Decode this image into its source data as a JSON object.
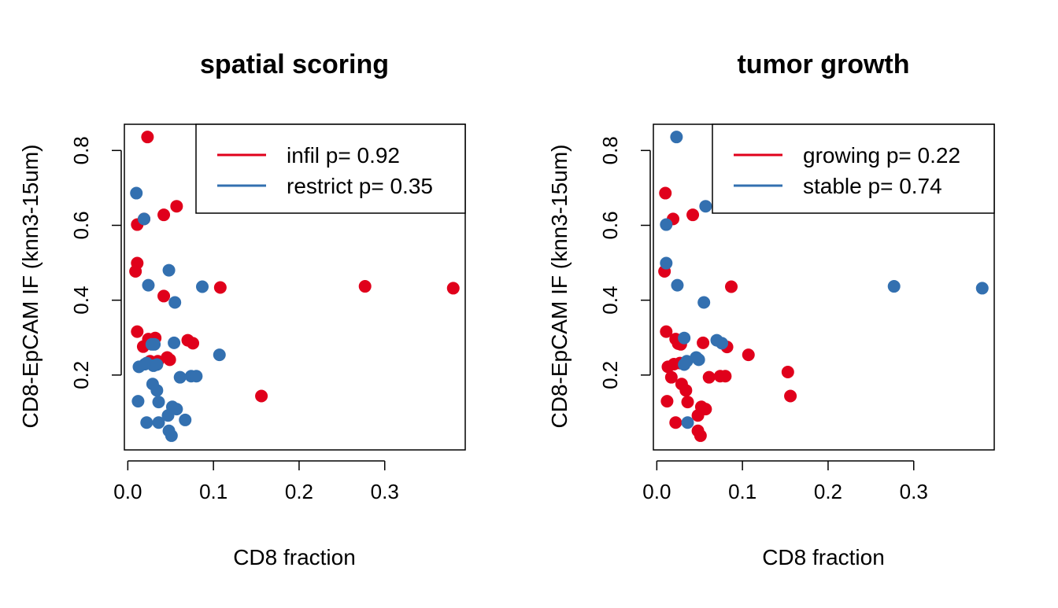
{
  "colors": {
    "red": "#E0001B",
    "blue": "#3370B0"
  },
  "chart_data": [
    {
      "type": "scatter",
      "title": "spatial scoring",
      "xlabel": "CD8 fraction",
      "ylabel": "CD8-EpCAM IF (knn3-15um)",
      "xlim": [
        -0.004,
        0.394
      ],
      "ylim": [
        0.0,
        0.87
      ],
      "xticks": [
        "0.0",
        "0.1",
        "0.2",
        "0.3"
      ],
      "yticks": [
        "0.2",
        "0.4",
        "0.6",
        "0.8"
      ],
      "grid": false,
      "legend_position": "top-right",
      "legend": [
        {
          "label": "infil p= 0.92",
          "color": "red"
        },
        {
          "label": "restrict p= 0.35",
          "color": "blue"
        }
      ],
      "series": [
        {
          "name": "infil",
          "color": "red",
          "points": [
            [
              0.023,
              0.836
            ],
            [
              0.011,
              0.602
            ],
            [
              0.019,
              0.617
            ],
            [
              0.042,
              0.628
            ],
            [
              0.057,
              0.651
            ],
            [
              0.011,
              0.499
            ],
            [
              0.009,
              0.477
            ],
            [
              0.042,
              0.411
            ],
            [
              0.108,
              0.434
            ],
            [
              0.277,
              0.437
            ],
            [
              0.38,
              0.432
            ],
            [
              0.011,
              0.316
            ],
            [
              0.024,
              0.296
            ],
            [
              0.032,
              0.299
            ],
            [
              0.018,
              0.276
            ],
            [
              0.07,
              0.293
            ],
            [
              0.076,
              0.285
            ],
            [
              0.026,
              0.237
            ],
            [
              0.035,
              0.237
            ],
            [
              0.046,
              0.247
            ],
            [
              0.049,
              0.241
            ],
            [
              0.156,
              0.144
            ]
          ]
        },
        {
          "name": "restrict",
          "color": "blue",
          "points": [
            [
              0.01,
              0.686
            ],
            [
              0.019,
              0.617
            ],
            [
              0.048,
              0.48
            ],
            [
              0.024,
              0.44
            ],
            [
              0.055,
              0.394
            ],
            [
              0.087,
              0.436
            ],
            [
              0.028,
              0.282
            ],
            [
              0.031,
              0.282
            ],
            [
              0.054,
              0.286
            ],
            [
              0.107,
              0.254
            ],
            [
              0.013,
              0.222
            ],
            [
              0.02,
              0.229
            ],
            [
              0.022,
              0.232
            ],
            [
              0.03,
              0.225
            ],
            [
              0.034,
              0.228
            ],
            [
              0.061,
              0.194
            ],
            [
              0.074,
              0.197
            ],
            [
              0.08,
              0.197
            ],
            [
              0.029,
              0.176
            ],
            [
              0.034,
              0.159
            ],
            [
              0.036,
              0.128
            ],
            [
              0.012,
              0.13
            ],
            [
              0.052,
              0.115
            ],
            [
              0.057,
              0.109
            ],
            [
              0.047,
              0.092
            ],
            [
              0.067,
              0.08
            ],
            [
              0.022,
              0.073
            ],
            [
              0.036,
              0.073
            ],
            [
              0.048,
              0.051
            ],
            [
              0.051,
              0.038
            ]
          ]
        }
      ]
    },
    {
      "type": "scatter",
      "title": "tumor growth",
      "xlabel": "CD8 fraction",
      "ylabel": "CD8-EpCAM IF (knn3-15um)",
      "xlim": [
        -0.004,
        0.394
      ],
      "ylim": [
        0.0,
        0.87
      ],
      "xticks": [
        "0.0",
        "0.1",
        "0.2",
        "0.3"
      ],
      "yticks": [
        "0.2",
        "0.4",
        "0.6",
        "0.8"
      ],
      "grid": false,
      "legend_position": "top-right",
      "legend": [
        {
          "label": "growing p= 0.22",
          "color": "red"
        },
        {
          "label": "stable p= 0.74",
          "color": "blue"
        }
      ],
      "series": [
        {
          "name": "growing",
          "color": "red",
          "points": [
            [
              0.01,
              0.686
            ],
            [
              0.019,
              0.617
            ],
            [
              0.042,
              0.628
            ],
            [
              0.009,
              0.477
            ],
            [
              0.087,
              0.436
            ],
            [
              0.011,
              0.316
            ],
            [
              0.022,
              0.296
            ],
            [
              0.025,
              0.284
            ],
            [
              0.028,
              0.282
            ],
            [
              0.054,
              0.286
            ],
            [
              0.082,
              0.275
            ],
            [
              0.107,
              0.254
            ],
            [
              0.153,
              0.208
            ],
            [
              0.156,
              0.144
            ],
            [
              0.013,
              0.222
            ],
            [
              0.02,
              0.229
            ],
            [
              0.027,
              0.232
            ],
            [
              0.017,
              0.194
            ],
            [
              0.061,
              0.194
            ],
            [
              0.074,
              0.197
            ],
            [
              0.08,
              0.197
            ],
            [
              0.029,
              0.176
            ],
            [
              0.034,
              0.159
            ],
            [
              0.036,
              0.128
            ],
            [
              0.012,
              0.13
            ],
            [
              0.052,
              0.115
            ],
            [
              0.057,
              0.109
            ],
            [
              0.048,
              0.092
            ],
            [
              0.022,
              0.073
            ],
            [
              0.048,
              0.051
            ],
            [
              0.051,
              0.038
            ]
          ]
        },
        {
          "name": "stable",
          "color": "blue",
          "points": [
            [
              0.023,
              0.836
            ],
            [
              0.057,
              0.651
            ],
            [
              0.011,
              0.602
            ],
            [
              0.011,
              0.499
            ],
            [
              0.024,
              0.44
            ],
            [
              0.055,
              0.394
            ],
            [
              0.277,
              0.437
            ],
            [
              0.38,
              0.432
            ],
            [
              0.032,
              0.299
            ],
            [
              0.07,
              0.293
            ],
            [
              0.076,
              0.285
            ],
            [
              0.035,
              0.237
            ],
            [
              0.046,
              0.247
            ],
            [
              0.049,
              0.241
            ],
            [
              0.032,
              0.228
            ],
            [
              0.036,
              0.073
            ]
          ]
        }
      ]
    }
  ]
}
